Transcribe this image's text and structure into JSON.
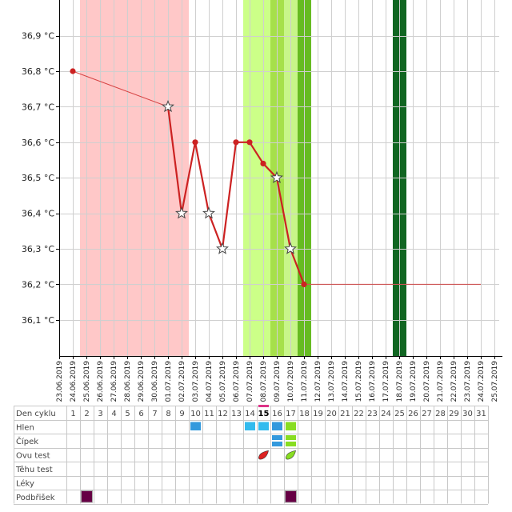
{
  "chart_data": {
    "type": "line",
    "title": "",
    "xlabel": "",
    "ylabel": "",
    "ylim": [
      36.0,
      37.0
    ],
    "y_ticks": [
      36.1,
      36.2,
      36.3,
      36.4,
      36.5,
      36.6,
      36.7,
      36.8,
      36.9
    ],
    "y_tick_labels": [
      "36,1 °C",
      "36,2 °C",
      "36,3 °C",
      "36,4 °C",
      "36,5 °C",
      "36,6 °C",
      "36,7 °C",
      "36,8 °C",
      "36,9 °C"
    ],
    "x": [
      "23.06.2019",
      "24.06.2019",
      "25.06.2019",
      "26.06.2019",
      "27.06.2019",
      "28.06.2019",
      "29.06.2019",
      "30.06.2019",
      "01.07.2019",
      "02.07.2019",
      "03.07.2019",
      "04.07.2019",
      "05.07.2019",
      "06.07.2019",
      "07.07.2019",
      "08.07.2019",
      "09.07.2019",
      "10.07.2019",
      "11.07.2019",
      "12.07.2019",
      "13.07.2019",
      "14.07.2019",
      "15.07.2019",
      "16.07.2019",
      "17.07.2019",
      "18.07.2019",
      "19.07.2019",
      "20.07.2019",
      "21.07.2019",
      "22.07.2019",
      "23.07.2019",
      "24.07.2019",
      "25.07.2019"
    ],
    "cycle_days": [
      "1",
      "2",
      "3",
      "4",
      "5",
      "6",
      "7",
      "8",
      "9",
      "10",
      "11",
      "12",
      "13",
      "14",
      "15",
      "16",
      "17",
      "18",
      "19",
      "20",
      "21",
      "22",
      "23",
      "24",
      "25",
      "26",
      "27",
      "28",
      "29",
      "30",
      "31"
    ],
    "highlighted_cycle_day": "15",
    "series": [
      {
        "color": "#cc2222",
        "points": [
          {
            "x": "24.06.2019",
            "y": 36.8,
            "marker": "dot"
          },
          {
            "x": "01.07.2019",
            "y": 36.7,
            "marker": "star"
          },
          {
            "x": "02.07.2019",
            "y": 36.4,
            "marker": "star"
          },
          {
            "x": "03.07.2019",
            "y": 36.6,
            "marker": "dot"
          },
          {
            "x": "04.07.2019",
            "y": 36.4,
            "marker": "star"
          },
          {
            "x": "05.07.2019",
            "y": 36.3,
            "marker": "star"
          },
          {
            "x": "06.07.2019",
            "y": 36.6,
            "marker": "dot"
          },
          {
            "x": "07.07.2019",
            "y": 36.6,
            "marker": "dot"
          },
          {
            "x": "08.07.2019",
            "y": 36.54,
            "marker": "dot"
          },
          {
            "x": "09.07.2019",
            "y": 36.5,
            "marker": "star"
          },
          {
            "x": "10.07.2019",
            "y": 36.3,
            "marker": "star"
          },
          {
            "x": "11.07.2019",
            "y": 36.2,
            "marker": "dot"
          },
          {
            "x": "24.07.2019",
            "y": 36.2,
            "marker": "none"
          }
        ]
      }
    ],
    "background_bands": [
      {
        "from_day": "1",
        "to_day": "8",
        "color": "#ffc8c8"
      },
      {
        "from_day": "13",
        "to_day": "14",
        "color": "#ccff88"
      },
      {
        "from_day": "15",
        "to_day": "15",
        "color": "#a6e04a"
      },
      {
        "from_day": "16",
        "to_day": "16",
        "color": "#c8f58a"
      },
      {
        "from_day": "17",
        "to_day": "17",
        "color": "#66bb22"
      },
      {
        "from_day": "24",
        "to_day": "24",
        "color": "#116622"
      }
    ],
    "table": {
      "rows": [
        {
          "label": "Den cyklu"
        },
        {
          "label": "Hlen",
          "cells": [
            {
              "day": "10",
              "color": "#3399dd",
              "shape": "bar"
            },
            {
              "day": "14",
              "color": "#33bbee",
              "shape": "bar"
            },
            {
              "day": "15",
              "color": "#33bbee",
              "shape": "bar"
            },
            {
              "day": "16",
              "color": "#3399dd",
              "shape": "bar"
            },
            {
              "day": "17",
              "color": "#88dd22",
              "shape": "bar"
            }
          ]
        },
        {
          "label": "Čípek",
          "cells": [
            {
              "day": "16",
              "color": "#3399dd",
              "shape": "split"
            },
            {
              "day": "17",
              "color": "#88dd22",
              "shape": "split"
            }
          ]
        },
        {
          "label": "Ovu test",
          "cells": [
            {
              "day": "15",
              "color": "#dd2222",
              "shape": "drop"
            },
            {
              "day": "17",
              "color": "#88dd22",
              "shape": "drop"
            }
          ]
        },
        {
          "label": "Těhu test"
        },
        {
          "label": "Léky"
        },
        {
          "label": "Podbřišek",
          "cells": [
            {
              "day": "2",
              "color": "#660044",
              "shape": "square"
            },
            {
              "day": "17",
              "color": "#660044",
              "shape": "square"
            }
          ]
        }
      ]
    }
  }
}
